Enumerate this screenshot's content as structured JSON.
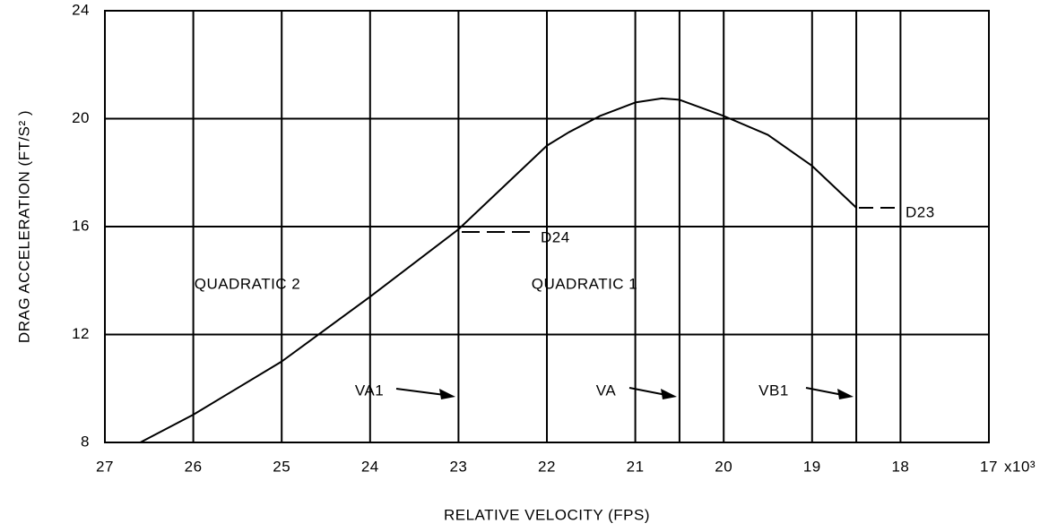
{
  "chart_data": {
    "type": "line",
    "x_label": "RELATIVE VELOCITY (FPS)",
    "y_label": "DRAG ACCELERATION (FT/S² )",
    "x_multiplier": "x10³",
    "x": [
      26.6,
      26,
      25,
      24,
      23,
      22,
      21.75,
      21.4,
      21,
      20.7,
      20.5,
      20,
      19.5,
      19,
      18.5
    ],
    "values": [
      8,
      9.03,
      11.0,
      13.4,
      15.9,
      19.0,
      19.5,
      20.1,
      20.6,
      20.75,
      20.7,
      20.1,
      19.4,
      18.25,
      16.7
    ],
    "color": "#000000",
    "xlim": [
      27,
      17
    ],
    "xticks": [
      27,
      26,
      25,
      24,
      23,
      22,
      21,
      20,
      19,
      18,
      17
    ],
    "ylim": [
      8,
      24
    ],
    "yticks": [
      8,
      12,
      16,
      20,
      24
    ],
    "reference_lines": [
      20.5,
      18.5
    ],
    "grid": true,
    "annotations": [
      "QUADRATIC 2",
      "QUADRATIC 1",
      "VA1",
      "VA",
      "VB1",
      "D24",
      "D23"
    ]
  }
}
